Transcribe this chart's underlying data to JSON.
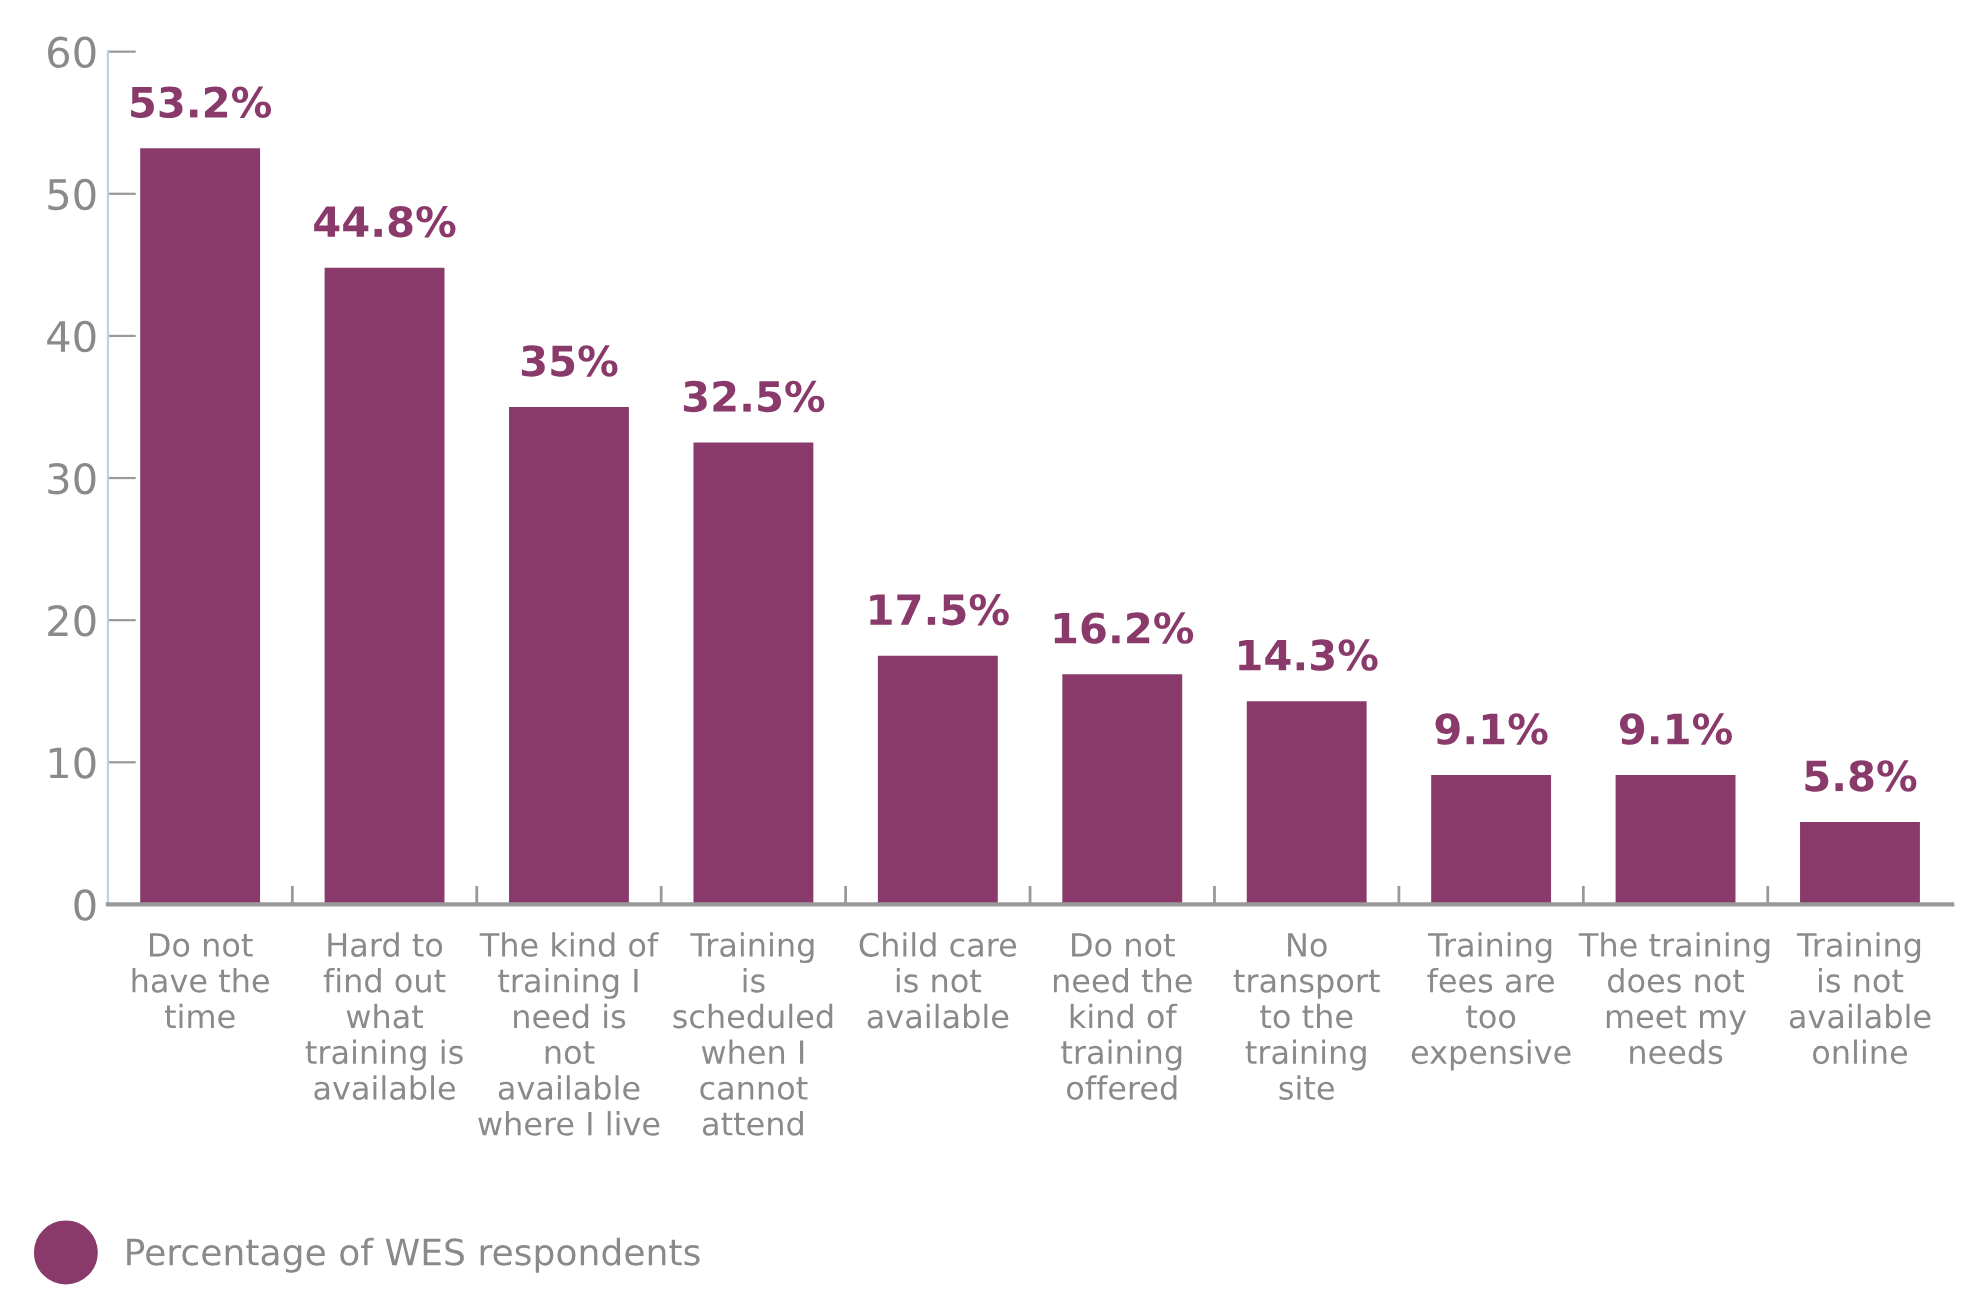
{
  "chart_data": {
    "type": "bar",
    "categories": [
      "Do not\nhave the\ntime",
      "Hard to\nfind out\nwhat\ntraining is\navailable",
      "The kind of\ntraining I\nneed is\nnot\navailable\nwhere I live",
      "Training\nis\nscheduled\nwhen I\ncannot\nattend",
      "Child care\nis not\navailable",
      "Do not\nneed the\nkind of\ntraining\noffered",
      "No\ntransport\nto the\ntraining\nsite",
      "Training\nfees are\ntoo\nexpensive",
      "The training\ndoes not\nmeet my\nneeds",
      "Training\nis not\navailable\nonline"
    ],
    "series": [
      {
        "name": "Percentage of WES respondents",
        "color": "#8a3a6a",
        "values": [
          53.2,
          44.8,
          35,
          32.5,
          17.5,
          16.2,
          14.3,
          9.1,
          9.1,
          5.8
        ],
        "value_labels": [
          "53.2%",
          "44.8%",
          "35%",
          "32.5%",
          "17.5%",
          "16.2%",
          "14.3%",
          "9.1%",
          "9.1%",
          "5.8%"
        ]
      }
    ],
    "ylim": [
      0,
      60
    ],
    "yticks": [
      0,
      10,
      20,
      30,
      40,
      50,
      60
    ],
    "grid": false,
    "legend": "bottom left"
  }
}
